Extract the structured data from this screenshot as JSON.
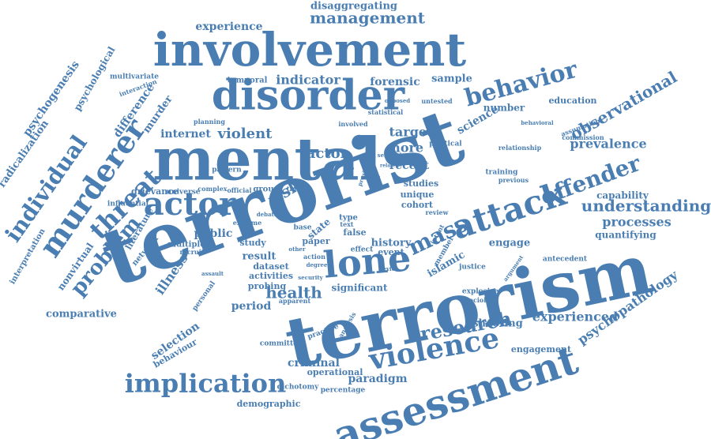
{
  "word_cloud": {
    "color": "#4a7eb2",
    "words": [
      "terrorist",
      "terrorism",
      "mental",
      "involvement",
      "disorder",
      "assessment",
      "lone",
      "attack",
      "actor",
      "murderer",
      "violence",
      "research",
      "implication",
      "behavior",
      "offender",
      "threat",
      "mass",
      "management",
      "individual",
      "problem",
      "health",
      "observational",
      "understanding",
      "psychopathology",
      "risk",
      "factor",
      "experience",
      "disaggregating",
      "psychogenesis",
      "psychological",
      "radicalization",
      "internet",
      "violent",
      "indicator",
      "forensic",
      "sample",
      "target",
      "more",
      "recent",
      "studies",
      "unique",
      "cohort",
      "illness",
      "public",
      "result",
      "dataset",
      "activities",
      "probing",
      "period",
      "significant",
      "criminal",
      "operational",
      "paradigm",
      "selection",
      "behaviour",
      "comparative",
      "experienced",
      "shooting",
      "engagement",
      "prevalence",
      "capability",
      "processes",
      "quantifying",
      "education",
      "science",
      "number",
      "engage",
      "islamic",
      "history",
      "event",
      "grievance",
      "universe",
      "influential",
      "literature",
      "network",
      "multiple",
      "nonvirtual",
      "interpretation",
      "personal",
      "difference",
      "murder",
      "multivariate",
      "interaction",
      "temporal",
      "pattern",
      "relationship",
      "training",
      "previous",
      "assumption",
      "commission",
      "antecedent",
      "explosive",
      "sociology",
      "justice",
      "argument",
      "demographic",
      "dichotomy",
      "percentage",
      "committed",
      "practice",
      "analysis",
      "apparent",
      "planning",
      "complex",
      "official",
      "group",
      "time",
      "extreme",
      "recruit",
      "assault",
      "paper",
      "state",
      "false",
      "type",
      "base",
      "study",
      "effect",
      "political",
      "statistical",
      "behavioral",
      "untested",
      "opposed",
      "involved",
      "proximate",
      "seminal",
      "related",
      "review",
      "member",
      "intent",
      "device",
      "security",
      "other",
      "action",
      "degree",
      "debate",
      "text"
    ]
  }
}
